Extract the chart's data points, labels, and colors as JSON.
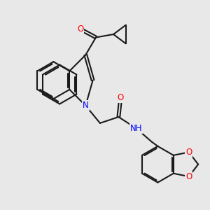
{
  "bg_color": "#e8e8e8",
  "bond_color": "#1a1a1a",
  "bond_width": 1.5,
  "atom_colors": {
    "N": "#0000ff",
    "O": "#ff0000",
    "H": "#777777",
    "C": "#1a1a1a"
  },
  "font_size_atom": 8.5,
  "figsize": [
    3.0,
    3.0
  ],
  "dpi": 100
}
